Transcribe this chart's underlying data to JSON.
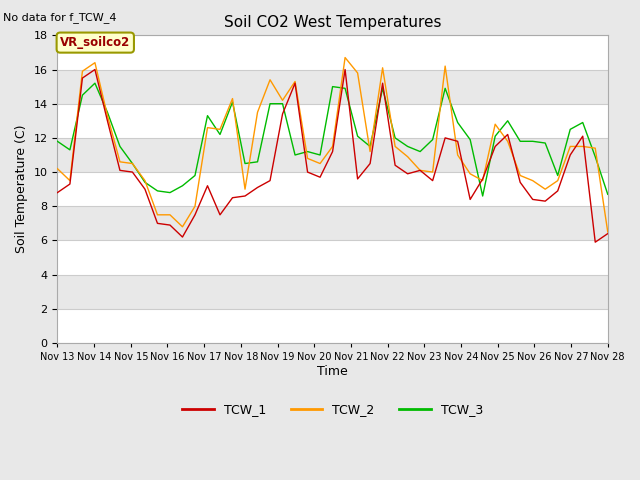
{
  "title": "Soil CO2 West Temperatures",
  "top_left_text": "No data for f_TCW_4",
  "box_label": "VR_soilco2",
  "xlabel": "Time",
  "ylabel": "Soil Temperature (C)",
  "ylim": [
    0,
    18
  ],
  "yticks": [
    0,
    2,
    4,
    6,
    8,
    10,
    12,
    14,
    16,
    18
  ],
  "xtick_labels": [
    "Nov 13",
    "Nov 14",
    "Nov 15",
    "Nov 16",
    "Nov 17",
    "Nov 18",
    "Nov 19",
    "Nov 20",
    "Nov 21",
    "Nov 22",
    "Nov 23",
    "Nov 24",
    "Nov 25",
    "Nov 26",
    "Nov 27",
    "Nov 28"
  ],
  "colors": {
    "TCW_1": "#cc0000",
    "TCW_2": "#ff9900",
    "TCW_3": "#00bb00"
  },
  "bg_light": "#ffffff",
  "bg_dark": "#e8e8e8",
  "outer_bg": "#e8e8e8",
  "grid_line_color": "#cccccc",
  "TCW_1": [
    8.8,
    9.3,
    15.5,
    16.0,
    13.0,
    10.1,
    10.0,
    9.0,
    7.0,
    6.9,
    6.2,
    7.5,
    9.2,
    7.5,
    8.5,
    8.6,
    9.1,
    9.5,
    13.4,
    15.2,
    10.0,
    9.7,
    11.2,
    16.0,
    9.6,
    10.5,
    15.2,
    10.4,
    9.9,
    10.1,
    9.5,
    12.0,
    11.8,
    8.4,
    9.6,
    11.5,
    12.2,
    9.4,
    8.4,
    8.3,
    8.9,
    11.0,
    12.1,
    5.9,
    6.4
  ],
  "TCW_2": [
    10.2,
    9.5,
    15.9,
    16.4,
    13.3,
    10.6,
    10.5,
    9.5,
    7.5,
    7.5,
    6.8,
    8.0,
    12.6,
    12.5,
    14.3,
    9.0,
    13.5,
    15.4,
    14.2,
    15.3,
    10.8,
    10.5,
    11.5,
    16.7,
    15.8,
    11.2,
    16.1,
    11.5,
    10.9,
    10.1,
    10.0,
    16.2,
    11.0,
    9.9,
    9.5,
    12.8,
    11.8,
    9.8,
    9.5,
    9.0,
    9.5,
    11.5,
    11.5,
    11.4,
    6.5
  ],
  "TCW_3": [
    11.8,
    11.3,
    14.5,
    15.2,
    13.5,
    11.5,
    10.5,
    9.4,
    8.9,
    8.8,
    9.2,
    9.8,
    13.3,
    12.2,
    14.1,
    10.5,
    10.6,
    14.0,
    14.0,
    11.0,
    11.2,
    11.0,
    15.0,
    14.9,
    12.1,
    11.5,
    14.9,
    12.0,
    11.5,
    11.2,
    11.9,
    14.9,
    12.9,
    11.9,
    8.6,
    12.1,
    13.0,
    11.8,
    11.8,
    11.7,
    9.8,
    12.5,
    12.9,
    10.9,
    8.7
  ]
}
